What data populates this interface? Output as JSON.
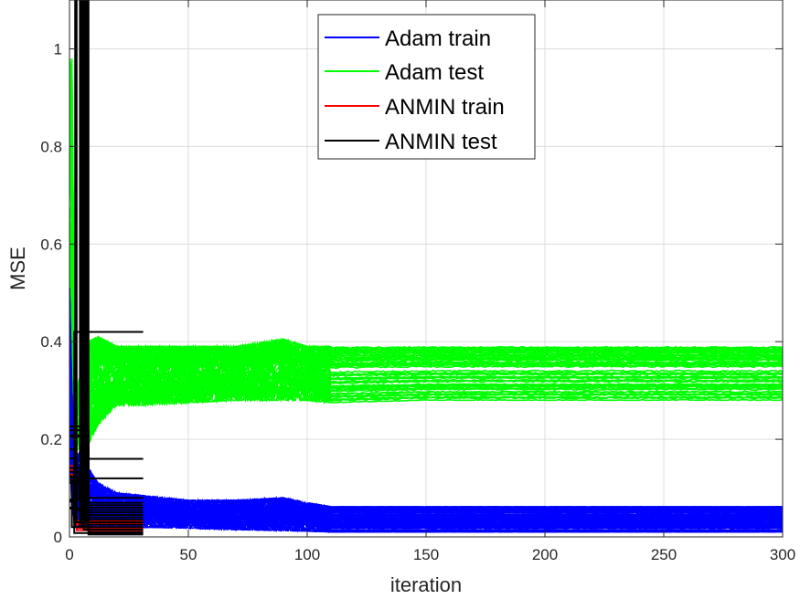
{
  "chart_data": {
    "type": "line",
    "xlabel": "iteration",
    "ylabel": "MSE",
    "xlim": [
      0,
      300
    ],
    "ylim": [
      0,
      1.1
    ],
    "xticks": [
      "0",
      "50",
      "100",
      "150",
      "200",
      "250",
      "300"
    ],
    "yticks": [
      "0",
      "0.2",
      "0.4",
      "0.6",
      "0.8",
      "1"
    ],
    "grid": true,
    "legend_position": "top-center",
    "series": [
      {
        "name": "Adam train",
        "color": "#0000ff",
        "description": "band of ~100 runs; spike to ~0.5 at start, peak ~0.17 near iteration 5, settling between ~0.01 and ~0.06 after iteration 100",
        "x": [
          0,
          1,
          2,
          3,
          5,
          8,
          12,
          20,
          30,
          50,
          70,
          90,
          100,
          110,
          150,
          200,
          250,
          300
        ],
        "band_low": [
          0.2,
          0.06,
          0.03,
          0.02,
          0.02,
          0.02,
          0.02,
          0.02,
          0.02,
          0.018,
          0.015,
          0.013,
          0.012,
          0.01,
          0.01,
          0.01,
          0.01,
          0.01
        ],
        "band_high": [
          0.51,
          0.3,
          0.2,
          0.17,
          0.17,
          0.14,
          0.11,
          0.09,
          0.085,
          0.075,
          0.075,
          0.08,
          0.07,
          0.062,
          0.062,
          0.062,
          0.062,
          0.062
        ]
      },
      {
        "name": "Adam test",
        "color": "#00ff00",
        "description": "band of ~100 runs; spike to ~0.98 at iteration 1, dip to ~0.18 around iteration 3-8, stabilising between ~0.28 and ~0.39",
        "x": [
          0,
          1,
          2,
          3,
          5,
          8,
          12,
          20,
          30,
          50,
          70,
          90,
          100,
          110,
          150,
          200,
          250,
          300
        ],
        "band_low": [
          0.45,
          0.3,
          0.2,
          0.18,
          0.18,
          0.19,
          0.23,
          0.27,
          0.27,
          0.275,
          0.28,
          0.28,
          0.28,
          0.275,
          0.28,
          0.28,
          0.28,
          0.28
        ],
        "band_high": [
          0.98,
          0.98,
          0.45,
          0.3,
          0.34,
          0.4,
          0.41,
          0.39,
          0.39,
          0.39,
          0.39,
          0.405,
          0.39,
          0.39,
          0.39,
          0.39,
          0.39,
          0.39
        ]
      },
      {
        "name": "ANMIN train",
        "color": "#ff0000",
        "description": "plotted underneath the black ANMIN test curves near zero; not visible separately"
      },
      {
        "name": "ANMIN test",
        "color": "#000000",
        "description": "~30 step runs ending at iteration 31; a few start with large spikes above 1.1, final plateaus between 0 and 0.42",
        "end_iteration": 31,
        "final_levels": [
          0.42,
          0.16,
          0.12,
          0.08,
          0.07,
          0.065,
          0.06,
          0.055,
          0.05,
          0.045,
          0.04,
          0.035,
          0.03,
          0.025,
          0.02,
          0.015,
          0.01,
          0.008,
          0.005
        ],
        "spike_iterations": [
          3,
          5,
          6,
          7,
          8
        ]
      }
    ]
  }
}
